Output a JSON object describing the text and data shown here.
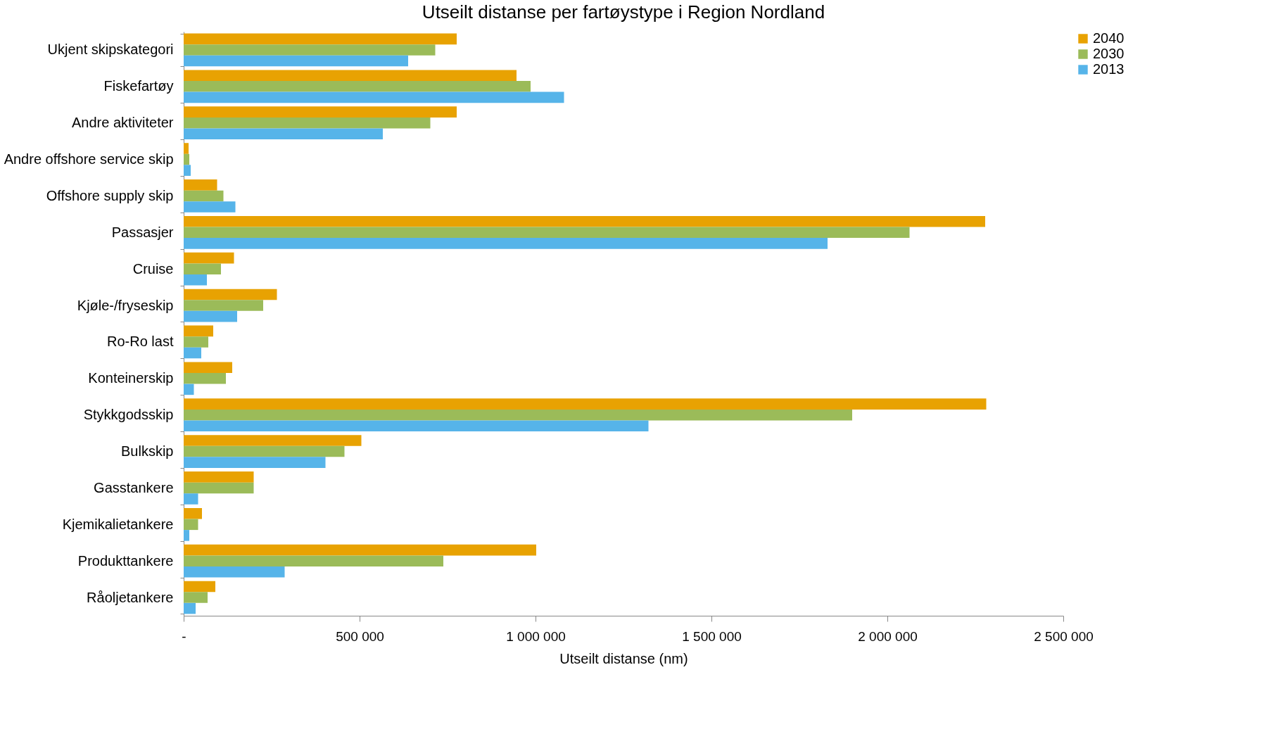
{
  "chart_data": {
    "type": "bar",
    "orientation": "horizontal",
    "title": "Utseilt distanse per fartøystype i Region Nordland",
    "xlabel": "Utseilt distanse (nm)",
    "categories": [
      "Ukjent skipskategori",
      "Fiskefartøy",
      "Andre aktiviteter",
      "Andre offshore service skip",
      "Offshore supply skip",
      "Passasjer",
      "Cruise",
      "Kjøle-/fryseskip",
      "Ro-Ro last",
      "Konteinerskip",
      "Stykkgodsskip",
      "Bulkskip",
      "Gasstankere",
      "Kjemikalietankere",
      "Produkttankere",
      "Råoljetankere"
    ],
    "series": [
      {
        "name": "2040",
        "color": "#e8a202",
        "values": [
          776000,
          946000,
          776000,
          14000,
          95000,
          2278000,
          143000,
          265000,
          84000,
          138000,
          2281000,
          505000,
          199000,
          52000,
          1002000,
          90000
        ]
      },
      {
        "name": "2030",
        "color": "#9bbb59",
        "values": [
          715000,
          986000,
          701000,
          16000,
          113000,
          2063000,
          106000,
          226000,
          70000,
          120000,
          1900000,
          457000,
          199000,
          41000,
          738000,
          68000
        ]
      },
      {
        "name": "2013",
        "color": "#56b4e9",
        "values": [
          638000,
          1081000,
          566000,
          20000,
          147000,
          1830000,
          66000,
          152000,
          50000,
          29000,
          1321000,
          403000,
          41000,
          16000,
          287000,
          34000
        ]
      }
    ],
    "xlim": [
      0,
      2500000
    ],
    "xticks": [
      {
        "value": 0,
        "label": "-"
      },
      {
        "value": 500000,
        "label": "500 000"
      },
      {
        "value": 1000000,
        "label": "1 000 000"
      },
      {
        "value": 1500000,
        "label": "1 500 000"
      },
      {
        "value": 2000000,
        "label": "2 000 000"
      },
      {
        "value": 2500000,
        "label": "2 500 000"
      }
    ],
    "grid": false,
    "legend": "right"
  }
}
